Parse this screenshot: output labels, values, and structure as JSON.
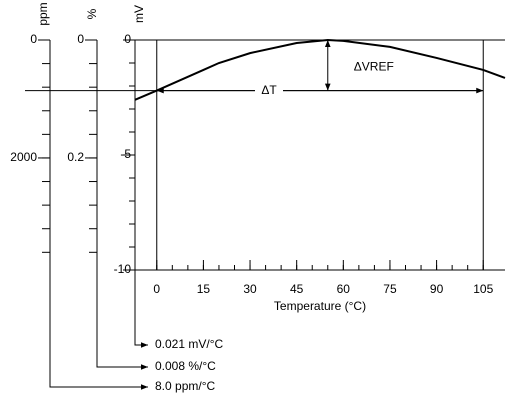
{
  "chart_data": {
    "type": "line",
    "x": [
      -7,
      0,
      15,
      20,
      30,
      45,
      55,
      60,
      75,
      90,
      105,
      112
    ],
    "values": [
      -2.6,
      -2.2,
      -1.3,
      -1.0,
      -0.57,
      -0.13,
      0,
      -0.04,
      -0.3,
      -0.78,
      -1.3,
      -1.65
    ],
    "color": "#000000",
    "xlim": [
      -7,
      112
    ],
    "xticks": [
      0,
      15,
      30,
      45,
      60,
      75,
      90,
      105
    ],
    "ylim": [
      -10,
      0
    ],
    "yticks": [
      0,
      -5,
      -10
    ],
    "xlabel": "Temperature (°C)",
    "ylabel": "mV",
    "ppm_axis": {
      "label": "ppm",
      "lim": [
        3900,
        0
      ],
      "ticks": [
        0,
        2000
      ]
    },
    "percent_axis": {
      "label": "%",
      "lim": [
        0.39,
        0
      ],
      "ticks": [
        0,
        0.2
      ]
    },
    "delta_v_label": "ΔVREF",
    "delta_t_label": "ΔT",
    "results": [
      "0.021 mV/°C",
      "0.008 %/°C",
      "8.0 ppm/°C"
    ]
  }
}
